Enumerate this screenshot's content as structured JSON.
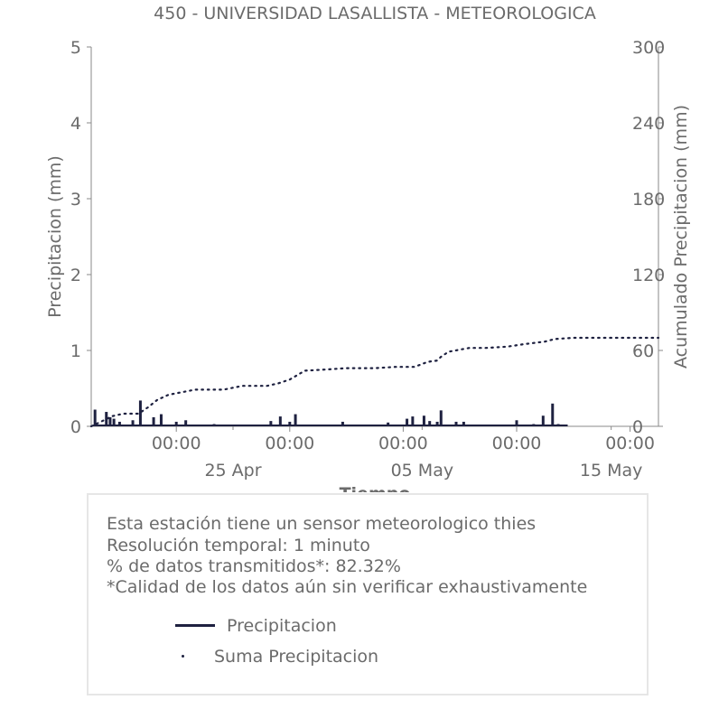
{
  "chart_data": {
    "type": "bar+line",
    "title": "450 - UNIVERSIDAD LASALLISTA - METEOROLOGICA",
    "xlabel": "Tiempo",
    "ylabel_left": "Precipitacion (mm)",
    "ylabel_right": "Acumulado Precipitacion (mm)",
    "ylim_left": [
      0,
      5
    ],
    "ylim_right": [
      0,
      300
    ],
    "yticks_left": [
      "0",
      "1",
      "2",
      "3",
      "4",
      "5"
    ],
    "yticks_right": [
      "0",
      "60",
      "120",
      "180",
      "240",
      "300"
    ],
    "xlim_days": [
      15.5,
      45.5
    ],
    "xticks_major": [
      {
        "day": 20,
        "label": "00:00"
      },
      {
        "day": 26,
        "label": "00:00"
      },
      {
        "day": 32,
        "label": "00:00"
      },
      {
        "day": 38,
        "label": "00:00"
      },
      {
        "day": 44,
        "label": "00:00"
      }
    ],
    "xticks_date": [
      {
        "day": 23,
        "label": "25 Apr"
      },
      {
        "day": 33,
        "label": "05 May"
      },
      {
        "day": 43,
        "label": "15 May"
      }
    ],
    "grid": false,
    "series": [
      {
        "name": "Precipitacion",
        "style": "bars",
        "color": "#1e2140",
        "x": [
          15.7,
          16.3,
          16.5,
          16.7,
          17.0,
          17.7,
          18.1,
          18.8,
          19.2,
          20.0,
          20.5,
          22.0,
          25.0,
          25.5,
          26.0,
          26.3,
          28.8,
          31.2,
          32.2,
          32.5,
          33.1,
          33.4,
          33.8,
          34.0,
          34.8,
          35.2,
          38.0,
          38.9,
          39.4,
          39.9,
          40.2
        ],
        "values": [
          0.22,
          0.19,
          0.12,
          0.1,
          0.06,
          0.08,
          0.34,
          0.12,
          0.16,
          0.06,
          0.08,
          0.03,
          0.07,
          0.13,
          0.06,
          0.16,
          0.06,
          0.05,
          0.1,
          0.13,
          0.14,
          0.07,
          0.06,
          0.21,
          0.06,
          0.06,
          0.08,
          0.03,
          0.14,
          0.3,
          0.03
        ]
      },
      {
        "name": "Suma Precipitacion",
        "style": "dotted",
        "color": "#1e2140",
        "x": [
          15.5,
          16.2,
          16.6,
          17.2,
          18.0,
          18.5,
          19.0,
          19.6,
          20.3,
          21.0,
          22.5,
          23.5,
          24.8,
          25.4,
          26.0,
          26.8,
          28.0,
          29.0,
          30.5,
          31.6,
          32.6,
          33.3,
          33.8,
          34.0,
          34.4,
          35.5,
          36.4,
          37.5,
          38.4,
          39.5,
          40.0,
          41.0,
          43.0,
          45.5
        ],
        "values": [
          0,
          5,
          8,
          10,
          10,
          15,
          21,
          25,
          27,
          29,
          29,
          32,
          32,
          34,
          37,
          44,
          45,
          46,
          46,
          47,
          47,
          51,
          52,
          55,
          59,
          62,
          62,
          63,
          65,
          67,
          69,
          70,
          70,
          70
        ]
      }
    ]
  },
  "info": {
    "line1": "Esta estación tiene un sensor meteorologico thies",
    "line2": "Resolución temporal: 1 minuto",
    "line3": "% de datos transmitidos*: 82.32%",
    "line4": "*Calidad de los datos aún sin verificar exhaustivamente"
  },
  "legend": {
    "item1": "Precipitacion",
    "item2": "Suma Precipitacion"
  }
}
